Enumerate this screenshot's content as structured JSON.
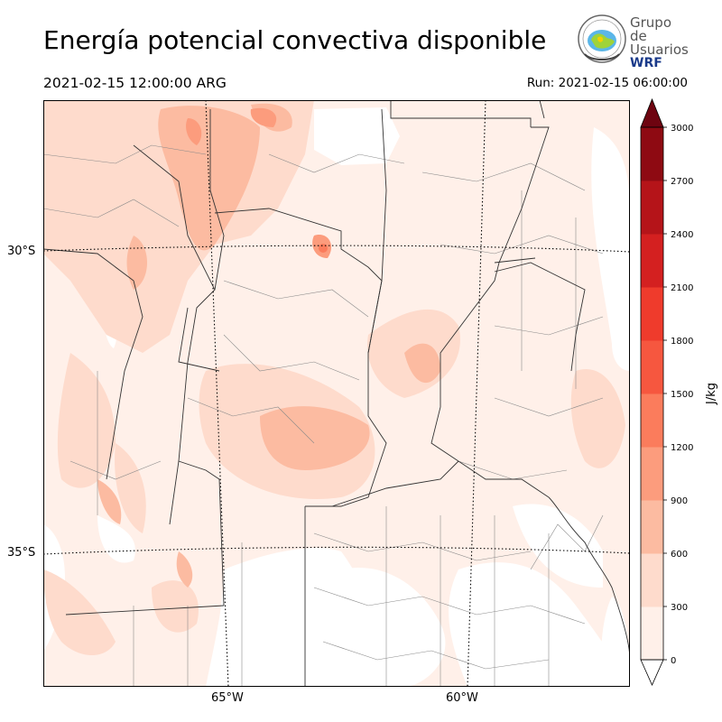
{
  "header": {
    "title": "Energía potencial convectiva disponible",
    "valid_time": "2021-02-15 12:00:00 ARG",
    "run_time": "Run: 2021-02-15 06:00:00"
  },
  "logo": {
    "line1": "Grupo de",
    "line2": "Usuarios",
    "line3": "WRF"
  },
  "map": {
    "lat_labels": [
      "30°S",
      "35°S"
    ],
    "lon_labels": [
      "65°W",
      "60°W"
    ]
  },
  "colorbar": {
    "unit": "J/kg",
    "ticks": [
      "0",
      "300",
      "600",
      "900",
      "1200",
      "1500",
      "1800",
      "2100",
      "2400",
      "2700",
      "3000"
    ],
    "colors": [
      "#fff0e9",
      "#fedbcc",
      "#fcbba1",
      "#fc9c7d",
      "#fb7c5c",
      "#f6573f",
      "#ef3b2c",
      "#d42020",
      "#b51419",
      "#8e0a12",
      "#6e0410"
    ]
  }
}
